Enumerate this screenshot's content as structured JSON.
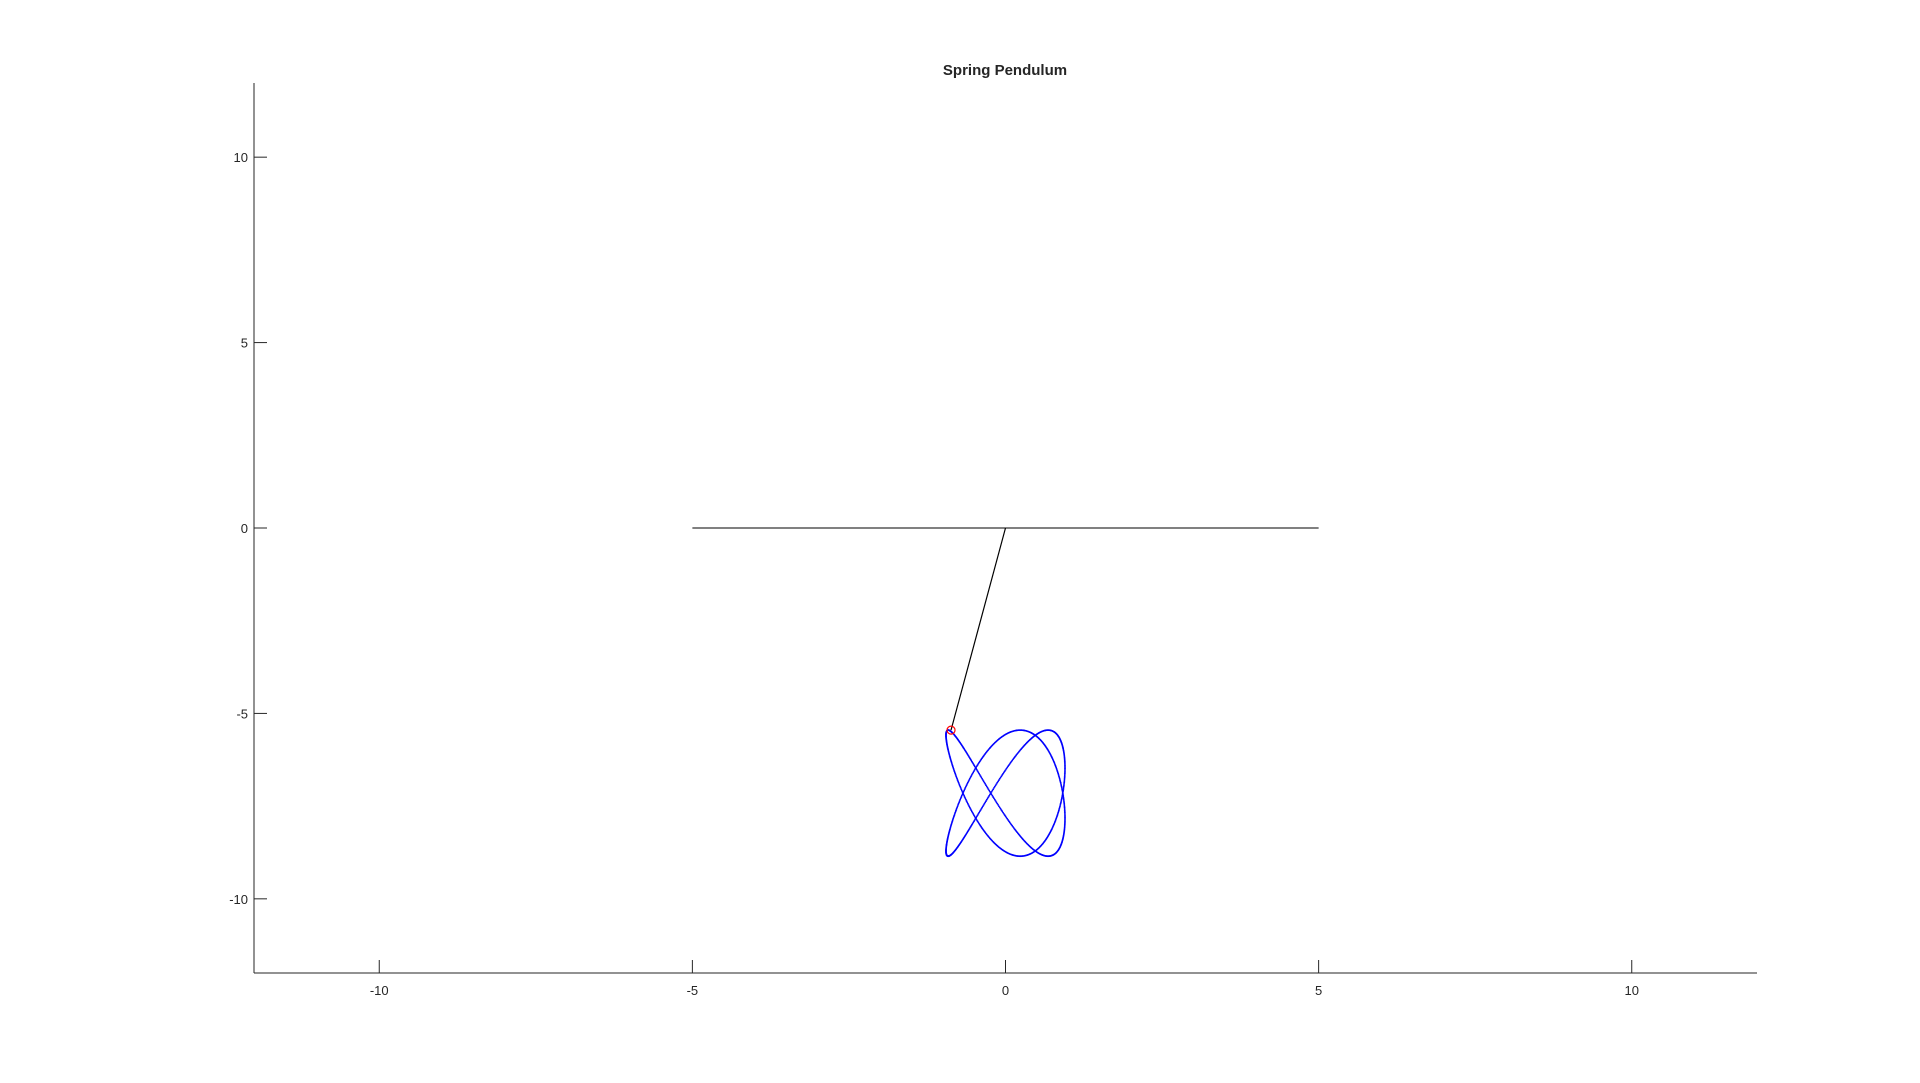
{
  "chart_data": {
    "type": "line",
    "title": "Spring Pendulum",
    "xlabel": "",
    "ylabel": "",
    "xlim": [
      -12,
      12
    ],
    "ylim": [
      -12,
      12
    ],
    "xticks": [
      -10,
      -5,
      0,
      5,
      10
    ],
    "yticks": [
      -10,
      -5,
      0,
      5,
      10
    ],
    "grid": false,
    "box": "off",
    "colors": {
      "axis": "#262626",
      "ceiling": "#000000",
      "spring": "#000000",
      "trajectory": "#0000ff",
      "bob": "#ff0000"
    },
    "series": [
      {
        "role": "ceiling",
        "style": "solid",
        "x": [
          -5,
          5
        ],
        "y": [
          0,
          0
        ]
      },
      {
        "role": "spring",
        "style": "solid",
        "x": [
          0,
          -0.87
        ],
        "y": [
          0,
          -5.45
        ]
      },
      {
        "role": "trajectory",
        "style": "dotted",
        "center": [
          0,
          -7.15
        ],
        "amplitude": [
          0.95,
          1.7
        ],
        "frequencies": [
          2,
          3
        ],
        "phase_x": 0.35,
        "phase_y": 0.9,
        "t_range": [
          0,
          6.2832
        ]
      },
      {
        "role": "bob",
        "marker": "circle",
        "x": [
          -0.87
        ],
        "y": [
          -5.45
        ]
      }
    ]
  }
}
